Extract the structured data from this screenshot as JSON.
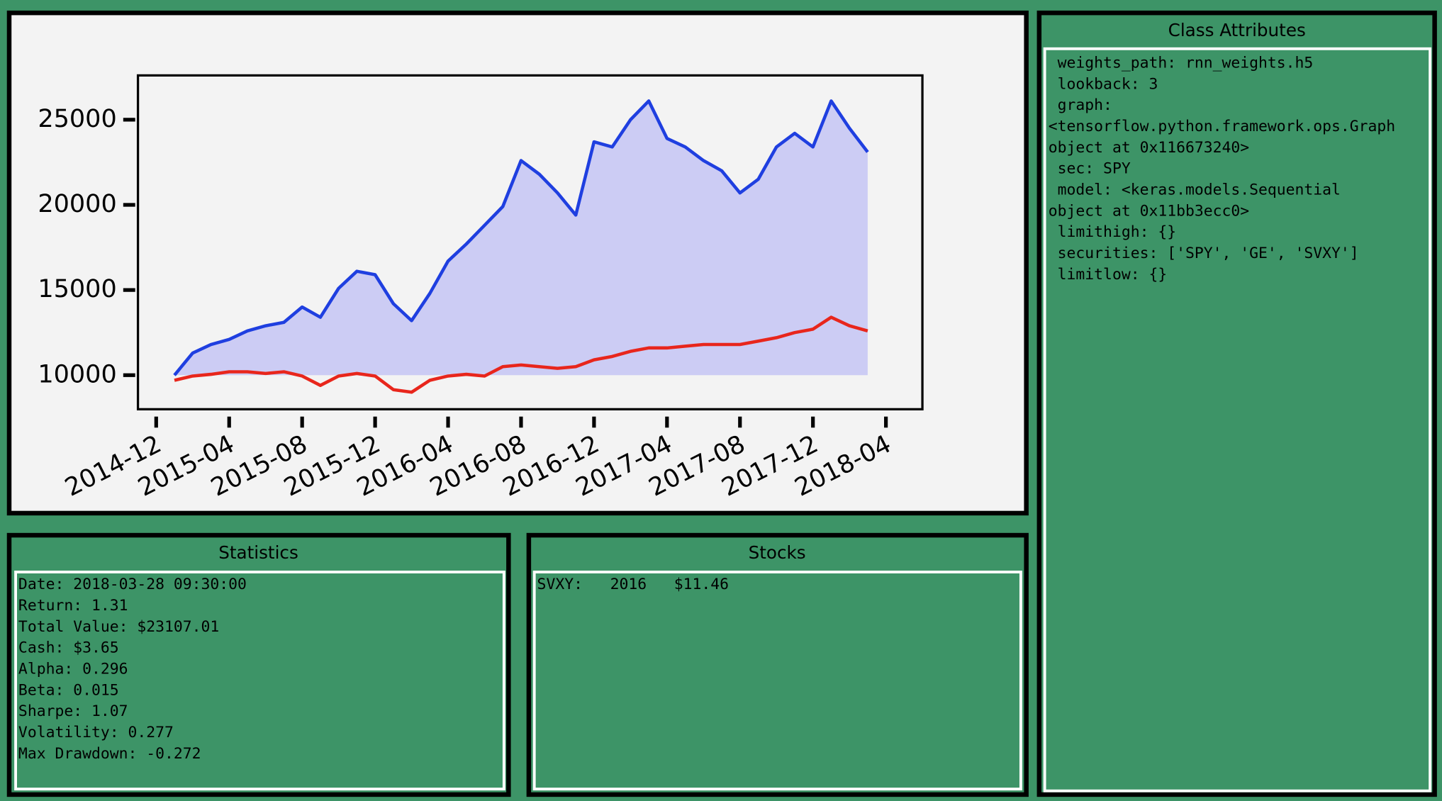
{
  "chart_data": {
    "type": "line",
    "x": [
      "2015-01",
      "2015-02",
      "2015-03",
      "2015-04",
      "2015-05",
      "2015-06",
      "2015-07",
      "2015-08",
      "2015-09",
      "2015-10",
      "2015-11",
      "2015-12",
      "2016-01",
      "2016-02",
      "2016-03",
      "2016-04",
      "2016-05",
      "2016-06",
      "2016-07",
      "2016-08",
      "2016-09",
      "2016-10",
      "2016-11",
      "2016-12",
      "2017-01",
      "2017-02",
      "2017-03",
      "2017-04",
      "2017-05",
      "2017-06",
      "2017-07",
      "2017-08",
      "2017-09",
      "2017-10",
      "2017-11",
      "2017-12",
      "2018-01",
      "2018-02",
      "2018-03"
    ],
    "series": [
      {
        "color": "#1f3fe0",
        "fill": "#ccccf4",
        "values": [
          10000,
          11300,
          11800,
          12100,
          12600,
          12900,
          13100,
          14000,
          13400,
          15100,
          16100,
          15900,
          14200,
          13200,
          14800,
          16700,
          17700,
          18800,
          19900,
          22600,
          21800,
          20700,
          19400,
          23700,
          23400,
          25000,
          26100,
          23900,
          23400,
          22600,
          22000,
          20700,
          21500,
          23400,
          24200,
          23400,
          26100,
          24500,
          23100
        ]
      },
      {
        "color": "#e8261c",
        "values": [
          9700,
          9950,
          10050,
          10200,
          10200,
          10100,
          10200,
          9950,
          9400,
          9950,
          10100,
          9950,
          9150,
          9000,
          9700,
          9950,
          10050,
          9950,
          10500,
          10600,
          10500,
          10400,
          10500,
          10900,
          11100,
          11400,
          11600,
          11600,
          11700,
          11800,
          11800,
          11800,
          12000,
          12200,
          12500,
          12700,
          13400,
          12900,
          12600
        ]
      }
    ],
    "xlim": [
      "2014-11",
      "2018-06"
    ],
    "xticks": [
      "2014-12",
      "2015-04",
      "2015-08",
      "2015-12",
      "2016-04",
      "2016-08",
      "2016-12",
      "2017-04",
      "2017-08",
      "2017-12",
      "2018-04"
    ],
    "ylim": [
      8000,
      27600
    ],
    "yticks": [
      10000,
      15000,
      20000,
      25000
    ]
  },
  "statistics": {
    "title": "Statistics",
    "lines": [
      "Date: 2018-03-28 09:30:00",
      "Return: 1.31",
      "Total Value: $23107.01",
      "Cash: $3.65",
      "Alpha: 0.296",
      "Beta: 0.015",
      "Sharpe: 1.07",
      "Volatility: 0.277",
      "Max Drawdown: -0.272"
    ]
  },
  "stocks": {
    "title": "Stocks",
    "lines": [
      "SVXY:   2016   $11.46"
    ]
  },
  "class_attributes": {
    "title": "Class Attributes",
    "lines": [
      " weights_path: rnn_weights.h5",
      " lookback: 3",
      " graph:",
      "<tensorflow.python.framework.ops.Graph",
      "object at 0x116673240>",
      " sec: SPY",
      " model: <keras.models.Sequential",
      "object at 0x11bb3ecc0>",
      " limithigh: {}",
      " securities: ['SPY', 'GE', 'SVXY']",
      " limitlow: {}"
    ]
  }
}
